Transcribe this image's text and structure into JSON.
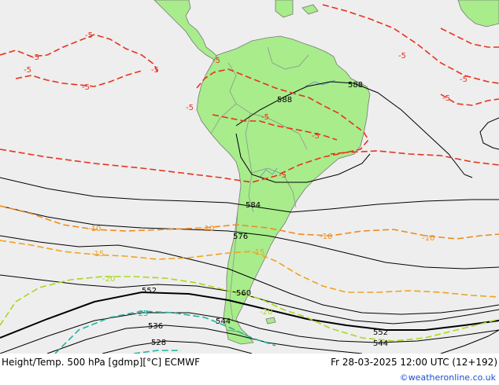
{
  "footer": {
    "title": "Height/Temp. 500 hPa [gdmp][°C] ECMWF",
    "datetime": "Fr 28-03-2025 12:00 UTC (12+192)",
    "brand": "©weatheronline.co.uk"
  },
  "colors": {
    "ocean": "#eeeeee",
    "land": "#a8ec8c",
    "land_border": "#777777",
    "height_contour": "#000000",
    "temp_minus5": "#e8321e",
    "temp_minus10": "#f08c1e",
    "temp_minus15": "#f0a41e",
    "temp_minus20": "#a8d81e",
    "temp_minus25": "#1eb4a0"
  },
  "height_labels": {
    "h588a": "588",
    "h588b": "588",
    "h584": "584",
    "h576": "576",
    "h560": "560",
    "h552a": "552",
    "h552b": "552",
    "h544a": "544",
    "h544b": "544",
    "h536": "536",
    "h528": "528"
  },
  "temp_labels": {
    "t5a": "-5",
    "t5b": "-5",
    "t5c": "-5",
    "t5d": "-5",
    "t5e": "-5",
    "t5f": "-5",
    "t5g": "-5",
    "t5h": "-5",
    "t5i": "-5",
    "t5j": "-5",
    "t5k": "-5",
    "t5l": "-5",
    "t5m": "-5",
    "t10a": "-10",
    "t10b": "-10",
    "t10c": "-10",
    "t10d": "-10",
    "t15a": "-15",
    "t15b": "-15",
    "t20a": "-20",
    "t20b": "-20",
    "t25a": "-25"
  }
}
